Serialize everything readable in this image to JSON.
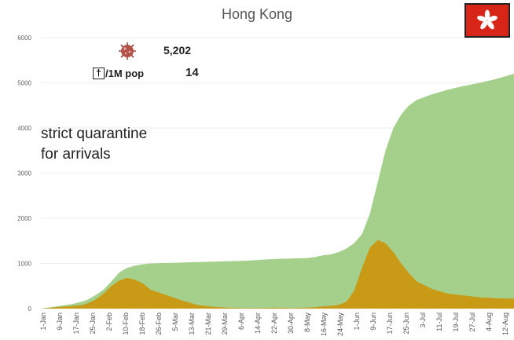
{
  "chart_data": {
    "type": "area",
    "title": "Hong Kong",
    "xlabel": "",
    "ylabel": "",
    "ylim": [
      0,
      6000
    ],
    "yticks": [
      0,
      1000,
      2000,
      3000,
      4000,
      5000,
      6000
    ],
    "xtick_labels": [
      "1-Jan",
      "9-Jan",
      "17-Jan",
      "25-Jan",
      "2-Feb",
      "10-Feb",
      "18-Feb",
      "26-Feb",
      "5-Mar",
      "13-Mar",
      "21-Mar",
      "29-Mar",
      "6-Apr",
      "14-Apr",
      "22-Apr",
      "30-Apr",
      "8-May",
      "16-May",
      "24-May",
      "1-Jun",
      "9-Jun",
      "17-Jun",
      "25-Jun",
      "3-Jul",
      "11-Jul",
      "19-Jul",
      "27-Jul",
      "4-Aug",
      "12-Aug"
    ],
    "x": [
      0,
      10,
      20,
      27,
      30,
      35,
      40,
      45,
      50,
      55,
      60,
      65,
      70,
      80,
      90,
      100,
      110,
      120,
      130,
      140,
      150,
      160,
      170,
      175,
      180,
      185,
      190,
      195,
      200,
      205,
      210,
      215,
      220,
      225,
      230,
      235,
      240,
      250,
      260,
      270,
      280,
      290,
      302
    ],
    "series": [
      {
        "values": [
          0,
          50,
          100,
          160,
          200,
          300,
          420,
          600,
          800,
          900,
          950,
          980,
          1000,
          1010,
          1020,
          1030,
          1040,
          1050,
          1060,
          1080,
          1100,
          1110,
          1120,
          1140,
          1180,
          1200,
          1250,
          1330,
          1450,
          1650,
          2100,
          2800,
          3500,
          4000,
          4300,
          4500,
          4620,
          4750,
          4850,
          4930,
          5000,
          5080,
          5202
        ],
        "color": "#a5d08b"
      },
      {
        "values": [
          0,
          30,
          60,
          80,
          120,
          200,
          330,
          500,
          620,
          680,
          640,
          560,
          420,
          300,
          180,
          80,
          40,
          20,
          10,
          10,
          20,
          10,
          20,
          30,
          50,
          60,
          80,
          150,
          400,
          900,
          1350,
          1520,
          1450,
          1250,
          1000,
          780,
          600,
          430,
          330,
          290,
          250,
          230,
          220
        ],
        "color": "#c89a16"
      }
    ],
    "annotation": "strict quarantine\nfor arrivals"
  },
  "summary": {
    "total_cases": "5,202",
    "deaths_per_million_label": "/1M pop",
    "deaths_per_million_icon": "†",
    "deaths_per_million": "14",
    "virus_icon": "coronavirus-icon",
    "flag_icon": "hong-kong-flag-icon"
  },
  "colors": {
    "flag_red": "#d72618",
    "virus": "#a0443c"
  }
}
